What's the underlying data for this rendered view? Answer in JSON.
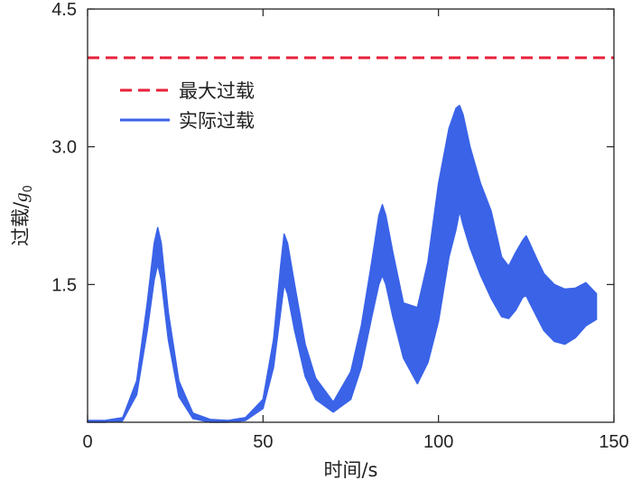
{
  "chart_data": {
    "type": "line",
    "xlabel": "时间/s",
    "ylabel_main": "过载/",
    "ylabel_symbol": "g",
    "ylabel_subscript": "0",
    "xlim": [
      0,
      150
    ],
    "ylim": [
      0,
      4.5
    ],
    "xticks": [
      0,
      50,
      100,
      150
    ],
    "xtick_labels": [
      "0",
      "50",
      "100",
      "150"
    ],
    "yticks": [
      1.5,
      3.0,
      4.5
    ],
    "ytick_labels": [
      "1.5",
      "3.0",
      "4.5"
    ],
    "grid": false,
    "legend_position": "top-left",
    "series": [
      {
        "name": "最大过载",
        "style": "dashed",
        "color": "#e8203a",
        "x": [
          0,
          150
        ],
        "y": [
          3.97,
          3.97
        ]
      },
      {
        "name": "实际过载",
        "style": "filled-band",
        "color": "#3a63e8",
        "x": [
          0,
          5,
          10,
          14,
          17,
          19,
          20,
          21,
          23,
          26,
          30,
          35,
          40,
          45,
          50,
          53,
          55,
          56,
          57,
          59,
          62,
          65,
          70,
          75,
          78,
          81,
          83,
          84,
          85,
          87,
          90,
          94,
          97,
          100,
          103,
          105,
          106,
          107,
          109,
          112,
          115,
          118,
          120,
          122,
          124,
          125,
          126,
          128,
          130,
          133,
          136,
          139,
          142,
          145
        ],
        "upper": [
          0.02,
          0.02,
          0.05,
          0.45,
          1.3,
          1.95,
          2.12,
          1.95,
          1.2,
          0.45,
          0.1,
          0.03,
          0.02,
          0.05,
          0.25,
          0.9,
          1.7,
          2.05,
          1.95,
          1.5,
          0.85,
          0.48,
          0.22,
          0.55,
          1.05,
          1.75,
          2.25,
          2.37,
          2.25,
          1.85,
          1.3,
          1.25,
          1.75,
          2.6,
          3.2,
          3.42,
          3.45,
          3.35,
          3.0,
          2.6,
          2.3,
          1.8,
          1.7,
          1.85,
          1.98,
          2.03,
          1.95,
          1.78,
          1.62,
          1.5,
          1.45,
          1.46,
          1.52,
          1.4
        ],
        "lower": [
          0.0,
          0.0,
          0.02,
          0.3,
          1.0,
          1.55,
          1.72,
          1.55,
          0.9,
          0.28,
          0.04,
          0.0,
          0.0,
          0.02,
          0.15,
          0.6,
          1.2,
          1.5,
          1.4,
          1.0,
          0.5,
          0.25,
          0.11,
          0.25,
          0.6,
          1.15,
          1.5,
          1.6,
          1.5,
          1.15,
          0.7,
          0.42,
          0.65,
          1.1,
          1.8,
          2.1,
          2.3,
          2.15,
          1.9,
          1.6,
          1.35,
          1.15,
          1.13,
          1.22,
          1.36,
          1.38,
          1.3,
          1.15,
          1.0,
          0.88,
          0.85,
          0.92,
          1.05,
          1.12
        ]
      }
    ]
  }
}
